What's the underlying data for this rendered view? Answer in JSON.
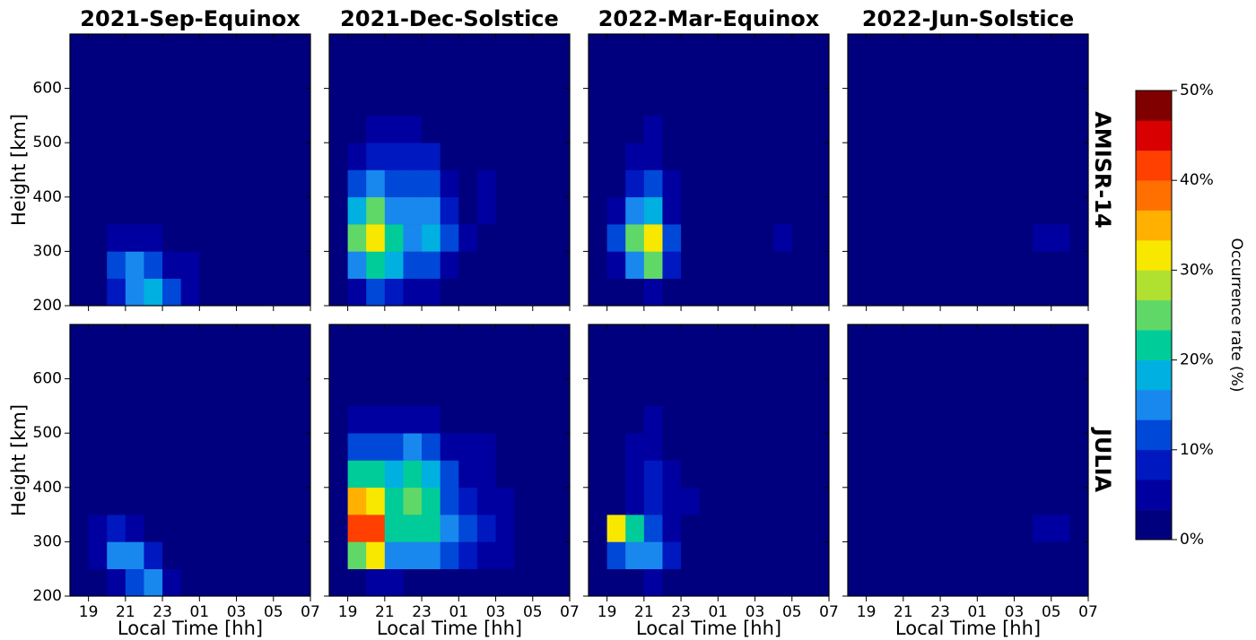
{
  "chart_data": {
    "type": "heatmap",
    "column_titles": [
      "2021-Sep-Equinox",
      "2021-Dec-Solstice",
      "2022-Mar-Equinox",
      "2022-Jun-Solstice"
    ],
    "row_labels": [
      "AMISR-14",
      "JULIA"
    ],
    "xlabel": "Local Time [hh]",
    "ylabel": "Height [km]",
    "xlim": [
      18,
      31
    ],
    "ylim": [
      200,
      700
    ],
    "xticks": [
      19,
      21,
      23,
      {
        "value": 25,
        "label": "01"
      },
      {
        "value": 27,
        "label": "03"
      },
      {
        "value": 29,
        "label": "05"
      },
      {
        "value": 31,
        "label": "07"
      }
    ],
    "yticks": [
      200,
      300,
      400,
      500,
      600
    ],
    "x_bins": [
      18,
      19,
      20,
      21,
      22,
      23,
      24,
      25,
      26,
      27,
      28,
      29,
      30,
      31
    ],
    "y_bins": [
      200,
      250,
      300,
      350,
      400,
      450,
      500,
      550,
      600,
      650,
      700
    ],
    "colorbar": {
      "label": "Occurrence rate (%)",
      "lim": [
        0,
        50
      ],
      "ticks": [
        {
          "value": 0,
          "label": "0%"
        },
        {
          "value": 10,
          "label": "10%"
        },
        {
          "value": 20,
          "label": "20%"
        },
        {
          "value": 30,
          "label": "30%"
        },
        {
          "value": 40,
          "label": "40%"
        },
        {
          "value": 50,
          "label": "50%"
        }
      ],
      "colors": [
        "#00007f",
        "#0000a0",
        "#0018c0",
        "#0048d8",
        "#1888ee",
        "#00b0e0",
        "#00cc99",
        "#60d868",
        "#b0e030",
        "#f8e800",
        "#ffb000",
        "#ff7000",
        "#ff4000",
        "#d80000",
        "#800000"
      ]
    },
    "values": [
      [
        [
          [
            0,
            2,
            8,
            14,
            18,
            10,
            5,
            3,
            0,
            0,
            0,
            0,
            0
          ],
          [
            0,
            3,
            10,
            15,
            12,
            6,
            4,
            2,
            0,
            0,
            0,
            0,
            0
          ],
          [
            0,
            1,
            4,
            6,
            6,
            3,
            2,
            1,
            0,
            0,
            0,
            0,
            0
          ],
          [
            0,
            0,
            1,
            2,
            3,
            1,
            0,
            0,
            0,
            0,
            0,
            0,
            0
          ],
          [
            0,
            0,
            0,
            1,
            1,
            0,
            0,
            0,
            0,
            0,
            0,
            0,
            0
          ],
          [
            0,
            0,
            0,
            0,
            0,
            0,
            0,
            0,
            0,
            0,
            0,
            0,
            0
          ],
          [
            0,
            0,
            0,
            1,
            0,
            0,
            0,
            0,
            0,
            0,
            0,
            0,
            0
          ],
          [
            0,
            0,
            0,
            0,
            0,
            0,
            0,
            0,
            0,
            0,
            0,
            0,
            0
          ],
          [
            0,
            0,
            0,
            0,
            0,
            0,
            0,
            0,
            0,
            0,
            0,
            0,
            0
          ],
          [
            0,
            0,
            0,
            0,
            0,
            0,
            0,
            0,
            0,
            0,
            0,
            0,
            0
          ]
        ],
        [
          [
            0,
            5,
            10,
            8,
            6,
            4,
            2,
            1,
            0,
            0,
            0,
            0,
            0
          ],
          [
            0,
            14,
            22,
            18,
            12,
            12,
            6,
            2,
            1,
            1,
            0,
            0,
            0
          ],
          [
            0,
            25,
            30,
            20,
            16,
            18,
            10,
            4,
            3,
            2,
            0,
            0,
            0
          ],
          [
            0,
            18,
            24,
            16,
            14,
            16,
            8,
            3,
            4,
            3,
            0,
            0,
            0
          ],
          [
            0,
            10,
            14,
            10,
            10,
            12,
            5,
            2,
            4,
            3,
            0,
            0,
            0
          ],
          [
            0,
            6,
            8,
            7,
            8,
            8,
            3,
            1,
            1,
            1,
            0,
            0,
            0
          ],
          [
            0,
            1,
            4,
            4,
            4,
            3,
            1,
            0,
            0,
            0,
            0,
            0,
            0
          ],
          [
            0,
            0,
            1,
            1,
            1,
            0,
            0,
            0,
            0,
            0,
            0,
            0,
            0
          ],
          [
            0,
            0,
            0,
            0,
            0,
            0,
            0,
            0,
            0,
            0,
            0,
            0,
            0
          ],
          [
            0,
            0,
            0,
            0,
            0,
            0,
            0,
            0,
            0,
            0,
            0,
            0,
            0
          ]
        ],
        [
          [
            0,
            0,
            2,
            6,
            3,
            1,
            0,
            0,
            0,
            0,
            0,
            0,
            0
          ],
          [
            0,
            6,
            14,
            24,
            8,
            2,
            0,
            0,
            0,
            0,
            2,
            0,
            0
          ],
          [
            0,
            12,
            26,
            32,
            10,
            2,
            0,
            0,
            0,
            0,
            4,
            0,
            0
          ],
          [
            0,
            4,
            14,
            18,
            6,
            1,
            0,
            0,
            0,
            0,
            0,
            0,
            0
          ],
          [
            0,
            2,
            8,
            12,
            4,
            1,
            0,
            0,
            0,
            0,
            0,
            0,
            0
          ],
          [
            0,
            1,
            4,
            6,
            3,
            0,
            0,
            0,
            0,
            0,
            0,
            0,
            0
          ],
          [
            0,
            0,
            2,
            4,
            2,
            0,
            0,
            0,
            0,
            0,
            0,
            0,
            0
          ],
          [
            0,
            0,
            1,
            2,
            0,
            0,
            0,
            0,
            0,
            0,
            0,
            0,
            0
          ],
          [
            0,
            0,
            0,
            1,
            0,
            0,
            0,
            0,
            0,
            0,
            0,
            0,
            0
          ],
          [
            0,
            0,
            0,
            0,
            0,
            0,
            0,
            0,
            0,
            0,
            0,
            0,
            0
          ]
        ],
        [
          [
            0,
            0,
            0,
            1,
            0,
            0,
            0,
            0,
            0,
            0,
            0,
            0,
            0
          ],
          [
            0,
            0,
            0,
            0,
            0,
            0,
            0,
            0,
            0,
            1,
            2,
            0,
            0
          ],
          [
            0,
            0,
            0,
            0,
            0,
            0,
            0,
            0,
            0,
            0,
            4,
            5,
            0
          ],
          [
            0,
            0,
            0,
            0,
            0,
            0,
            0,
            0,
            0,
            0,
            3,
            2,
            0
          ],
          [
            0,
            0,
            0,
            0,
            0,
            0,
            0,
            0,
            0,
            0,
            0,
            0,
            0
          ],
          [
            0,
            0,
            0,
            0,
            0,
            0,
            0,
            0,
            0,
            0,
            0,
            0,
            0
          ],
          [
            0,
            0,
            0,
            0,
            0,
            1,
            0,
            0,
            0,
            1,
            0,
            0,
            0
          ],
          [
            0,
            0,
            0,
            0,
            0,
            0,
            0,
            0,
            0,
            0,
            0,
            0,
            0
          ],
          [
            0,
            0,
            0,
            0,
            0,
            0,
            0,
            0,
            0,
            0,
            0,
            0,
            0
          ],
          [
            0,
            0,
            0,
            0,
            0,
            0,
            0,
            0,
            0,
            0,
            0,
            0,
            0
          ]
        ]
      ],
      [
        [
          [
            0,
            1,
            6,
            12,
            16,
            6,
            2,
            1,
            0,
            0,
            0,
            0,
            0
          ],
          [
            0,
            6,
            16,
            14,
            8,
            3,
            2,
            1,
            0,
            0,
            0,
            0,
            0
          ],
          [
            0,
            4,
            8,
            4,
            2,
            1,
            0,
            0,
            0,
            0,
            0,
            0,
            0
          ],
          [
            0,
            0,
            1,
            2,
            1,
            0,
            0,
            0,
            0,
            0,
            0,
            0,
            0
          ],
          [
            0,
            0,
            0,
            1,
            1,
            0,
            0,
            0,
            0,
            0,
            0,
            0,
            0
          ],
          [
            0,
            0,
            0,
            0,
            1,
            0,
            0,
            0,
            0,
            0,
            0,
            0,
            0
          ],
          [
            0,
            0,
            0,
            0,
            0,
            0,
            0,
            0,
            0,
            0,
            0,
            0,
            0
          ],
          [
            0,
            0,
            0,
            0,
            0,
            0,
            0,
            0,
            0,
            0,
            0,
            0,
            0
          ],
          [
            0,
            0,
            0,
            0,
            0,
            0,
            0,
            0,
            0,
            0,
            0,
            0,
            0
          ],
          [
            0,
            0,
            0,
            0,
            0,
            0,
            0,
            0,
            0,
            0,
            0,
            0,
            0
          ]
        ],
        [
          [
            0,
            2,
            4,
            4,
            3,
            3,
            2,
            1,
            1,
            0,
            0,
            0,
            0
          ],
          [
            0,
            26,
            32,
            16,
            16,
            16,
            10,
            8,
            6,
            4,
            1,
            0,
            0
          ],
          [
            0,
            40,
            42,
            22,
            22,
            22,
            14,
            10,
            8,
            5,
            2,
            0,
            0
          ],
          [
            0,
            34,
            30,
            22,
            24,
            22,
            12,
            8,
            6,
            4,
            1,
            0,
            0
          ],
          [
            0,
            22,
            20,
            18,
            22,
            18,
            10,
            6,
            6,
            3,
            0,
            0,
            0
          ],
          [
            0,
            10,
            12,
            12,
            14,
            12,
            6,
            4,
            4,
            2,
            0,
            0,
            0
          ],
          [
            0,
            4,
            6,
            6,
            6,
            5,
            3,
            2,
            2,
            1,
            0,
            0,
            0
          ],
          [
            0,
            1,
            2,
            2,
            2,
            2,
            1,
            0,
            0,
            0,
            0,
            0,
            0
          ],
          [
            0,
            0,
            0,
            0,
            0,
            0,
            0,
            0,
            0,
            0,
            0,
            0,
            0
          ],
          [
            0,
            0,
            0,
            0,
            0,
            0,
            0,
            0,
            0,
            0,
            0,
            0,
            0
          ]
        ],
        [
          [
            0,
            0,
            2,
            4,
            2,
            1,
            0,
            0,
            0,
            0,
            0,
            0,
            0
          ],
          [
            0,
            10,
            16,
            14,
            8,
            2,
            0,
            0,
            0,
            0,
            2,
            0,
            0
          ],
          [
            0,
            30,
            22,
            10,
            6,
            3,
            0,
            0,
            0,
            0,
            0,
            0,
            0
          ],
          [
            0,
            1,
            6,
            8,
            6,
            4,
            0,
            0,
            0,
            0,
            0,
            0,
            0
          ],
          [
            0,
            1,
            6,
            8,
            4,
            2,
            0,
            0,
            0,
            0,
            0,
            0,
            0
          ],
          [
            0,
            1,
            4,
            6,
            3,
            1,
            0,
            0,
            0,
            0,
            0,
            0,
            0
          ],
          [
            0,
            0,
            3,
            4,
            2,
            1,
            0,
            0,
            0,
            0,
            0,
            0,
            0
          ],
          [
            0,
            0,
            1,
            2,
            1,
            0,
            0,
            0,
            0,
            0,
            0,
            0,
            0
          ],
          [
            0,
            0,
            0,
            1,
            0,
            0,
            0,
            0,
            0,
            0,
            0,
            0,
            0
          ],
          [
            0,
            0,
            0,
            0,
            0,
            0,
            0,
            0,
            0,
            0,
            0,
            0,
            0
          ]
        ],
        [
          [
            0,
            0,
            0,
            0,
            0,
            0,
            0,
            0,
            0,
            0,
            0,
            0,
            0
          ],
          [
            0,
            0,
            0,
            0,
            0,
            0,
            0,
            0,
            0,
            0,
            2,
            3,
            0
          ],
          [
            0,
            0,
            0,
            0,
            0,
            0,
            0,
            0,
            0,
            0,
            4,
            4,
            0
          ],
          [
            0,
            0,
            0,
            0,
            0,
            0,
            0,
            0,
            0,
            0,
            2,
            2,
            0
          ],
          [
            0,
            0,
            0,
            0,
            0,
            0,
            0,
            0,
            0,
            0,
            0,
            0,
            0
          ],
          [
            0,
            0,
            0,
            0,
            0,
            0,
            0,
            0,
            0,
            0,
            0,
            0,
            0
          ],
          [
            0,
            0,
            0,
            0,
            0,
            0,
            0,
            0,
            0,
            0,
            0,
            0,
            0
          ],
          [
            0,
            0,
            0,
            0,
            0,
            0,
            0,
            0,
            0,
            0,
            0,
            0,
            0
          ],
          [
            0,
            0,
            0,
            0,
            0,
            0,
            0,
            0,
            0,
            0,
            0,
            0,
            0
          ],
          [
            0,
            0,
            0,
            0,
            0,
            0,
            0,
            0,
            0,
            0,
            0,
            0,
            0
          ]
        ]
      ]
    ]
  }
}
